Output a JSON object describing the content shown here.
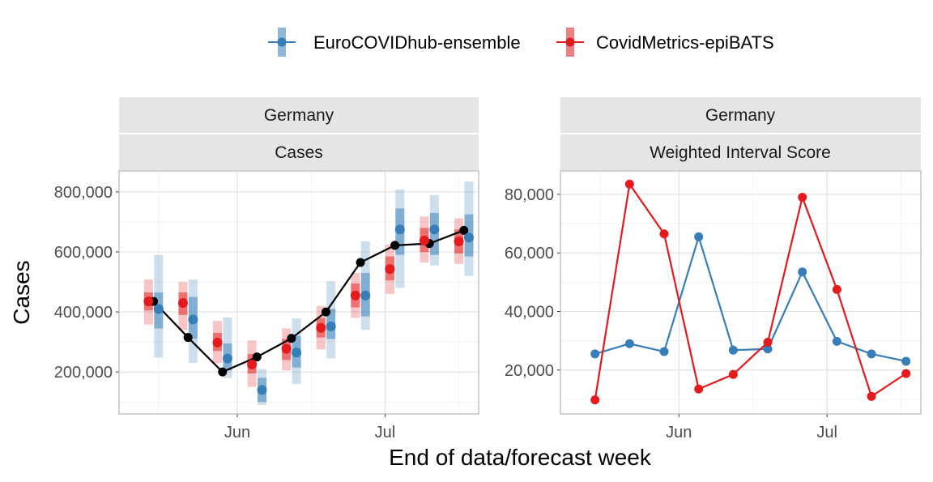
{
  "legend": {
    "items": [
      {
        "label": "EuroCOVIDhub-ensemble",
        "color": "#377EB8"
      },
      {
        "label": "CovidMetrics-epiBATS",
        "color": "#E41A1C"
      }
    ]
  },
  "xlabel": "End of data/forecast week",
  "colors": {
    "ensemble": "#377EB8",
    "epibats": "#E41A1C",
    "truth": "#000000",
    "strip_bg": "#E5E5E5",
    "grid": "#E0E0E0",
    "panel_border": "#B3B3B3"
  },
  "chart_data": [
    {
      "type": "line",
      "facet": [
        "Germany",
        "Cases"
      ],
      "ylabel": "Cases",
      "xlim": [
        "2021-05-08",
        "2021-07-20"
      ],
      "ylim": [
        60000,
        870000
      ],
      "yticks": [
        200000,
        400000,
        600000,
        800000
      ],
      "ytick_labels": [
        "200,000",
        "400,000",
        "600,000",
        "800,000"
      ],
      "xticks": [
        "2021-06-01",
        "2021-07-01"
      ],
      "xtick_labels": [
        "Jun",
        "Jul"
      ],
      "grid": true,
      "truth": {
        "name": "observed",
        "x": [
          "2021-05-15",
          "2021-05-22",
          "2021-05-29",
          "2021-06-05",
          "2021-06-12",
          "2021-06-19",
          "2021-06-26",
          "2021-07-03",
          "2021-07-10",
          "2021-07-17"
        ],
        "values": [
          435000,
          315000,
          200000,
          250000,
          312000,
          400000,
          565000,
          622000,
          628000,
          672000
        ]
      },
      "series": [
        {
          "name": "EuroCOVIDhub-ensemble",
          "x": [
            "2021-05-15",
            "2021-05-22",
            "2021-05-29",
            "2021-06-05",
            "2021-06-12",
            "2021-06-19",
            "2021-06-26",
            "2021-07-03",
            "2021-07-10",
            "2021-07-17"
          ],
          "median": [
            410000,
            375000,
            245000,
            140000,
            265000,
            352000,
            455000,
            675000,
            675000,
            648000
          ],
          "inner": [
            [
              345000,
              465000
            ],
            [
              310000,
              450000
            ],
            [
              205000,
              295000
            ],
            [
              100000,
              180000
            ],
            [
              215000,
              320000
            ],
            [
              310000,
              410000
            ],
            [
              385000,
              530000
            ],
            [
              590000,
              745000
            ],
            [
              590000,
              730000
            ],
            [
              585000,
              725000
            ]
          ],
          "outer": [
            [
              248000,
              590000
            ],
            [
              230000,
              508000
            ],
            [
              180000,
              382000
            ],
            [
              90000,
              210000
            ],
            [
              160000,
              378000
            ],
            [
              245000,
              502000
            ],
            [
              340000,
              635000
            ],
            [
              480000,
              808000
            ],
            [
              555000,
              790000
            ],
            [
              520000,
              835000
            ]
          ]
        },
        {
          "name": "CovidMetrics-epiBATS",
          "x": [
            "2021-05-15",
            "2021-05-22",
            "2021-05-29",
            "2021-06-05",
            "2021-06-12",
            "2021-06-19",
            "2021-06-26",
            "2021-07-03",
            "2021-07-10",
            "2021-07-17"
          ],
          "median": [
            435000,
            430000,
            298000,
            225000,
            277000,
            347000,
            455000,
            543000,
            638000,
            635000
          ],
          "inner": [
            [
              405000,
              465000
            ],
            [
              390000,
              465000
            ],
            [
              270000,
              330000
            ],
            [
              195000,
              260000
            ],
            [
              240000,
              310000
            ],
            [
              315000,
              380000
            ],
            [
              415000,
              495000
            ],
            [
              505000,
              585000
            ],
            [
              600000,
              680000
            ],
            [
              595000,
              675000
            ]
          ],
          "outer": [
            [
              358000,
              508000
            ],
            [
              340000,
              500000
            ],
            [
              230000,
              370000
            ],
            [
              150000,
              305000
            ],
            [
              205000,
              345000
            ],
            [
              275000,
              420000
            ],
            [
              380000,
              530000
            ],
            [
              460000,
              625000
            ],
            [
              565000,
              718000
            ],
            [
              560000,
              712000
            ]
          ]
        }
      ]
    },
    {
      "type": "line",
      "facet": [
        "Germany",
        "Weighted Interval Score"
      ],
      "xlim": [
        "2021-05-08",
        "2021-07-20"
      ],
      "ylim": [
        5000,
        88000
      ],
      "yticks": [
        20000,
        40000,
        60000,
        80000
      ],
      "ytick_labels": [
        "20,000",
        "40,000",
        "60,000",
        "80,000"
      ],
      "xticks": [
        "2021-06-01",
        "2021-07-01"
      ],
      "xtick_labels": [
        "Jun",
        "Jul"
      ],
      "grid": true,
      "series": [
        {
          "name": "EuroCOVIDhub-ensemble",
          "x": [
            "2021-05-15",
            "2021-05-22",
            "2021-05-29",
            "2021-06-05",
            "2021-06-12",
            "2021-06-19",
            "2021-06-26",
            "2021-07-03",
            "2021-07-10",
            "2021-07-17"
          ],
          "values": [
            25500,
            29000,
            26300,
            65500,
            26800,
            27200,
            53500,
            29800,
            25500,
            23000
          ]
        },
        {
          "name": "CovidMetrics-epiBATS",
          "x": [
            "2021-05-15",
            "2021-05-22",
            "2021-05-29",
            "2021-06-05",
            "2021-06-12",
            "2021-06-19",
            "2021-06-26",
            "2021-07-03",
            "2021-07-10",
            "2021-07-17"
          ],
          "values": [
            9800,
            83500,
            66500,
            13500,
            18500,
            29500,
            79000,
            47500,
            11000,
            18800
          ]
        }
      ]
    }
  ]
}
